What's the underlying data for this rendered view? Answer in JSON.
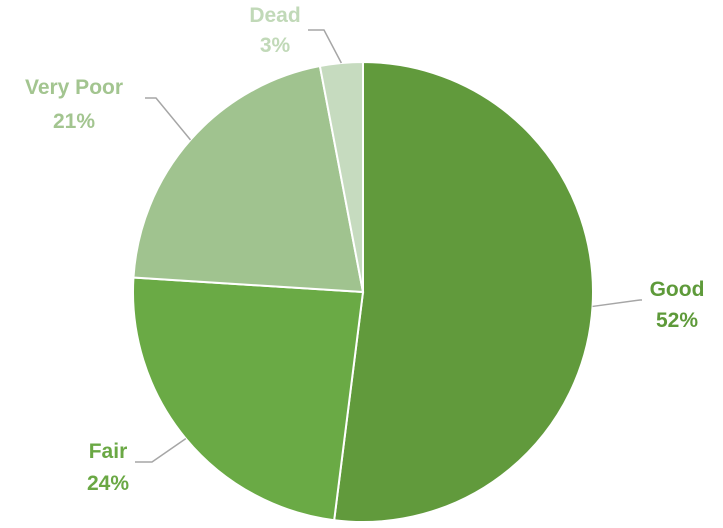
{
  "chart_data": {
    "type": "pie",
    "title": "",
    "categories": [
      "Good",
      "Fair",
      "Very Poor",
      "Dead"
    ],
    "values": [
      52,
      24,
      21,
      3
    ],
    "value_labels": [
      "52%",
      "24%",
      "21%",
      "3%"
    ],
    "colors": [
      "#619a3c",
      "#6aaa45",
      "#a0c38f",
      "#c6dbbf"
    ],
    "label_colors": [
      "#5e9a3a",
      "#6aa844",
      "#a3c590",
      "#c1d9b8"
    ],
    "start": "12 o'clock",
    "direction": "clockwise",
    "legend": "none",
    "data_labels": "outside with leader lines"
  }
}
